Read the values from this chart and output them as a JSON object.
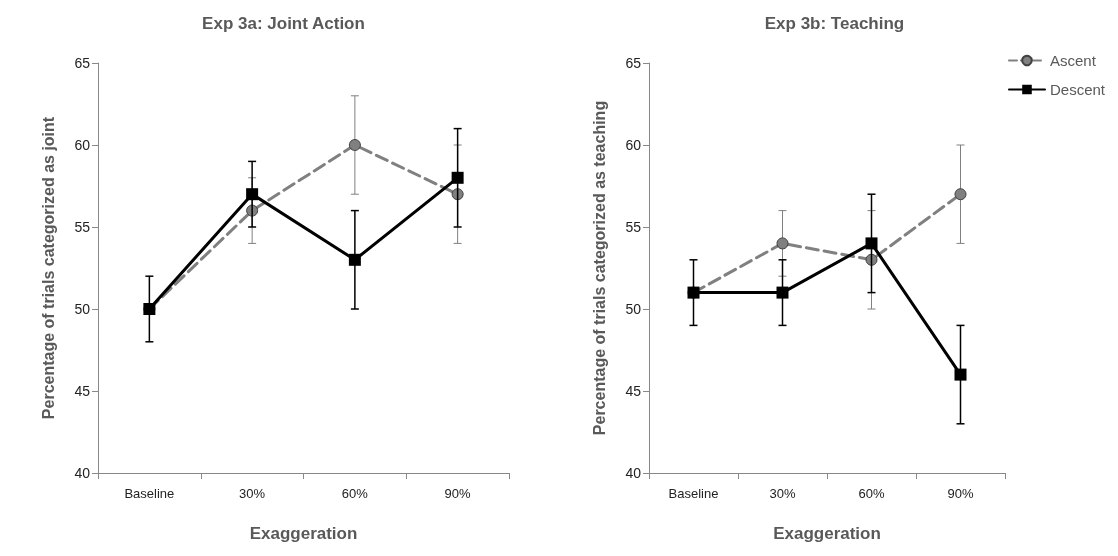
{
  "chart_data": [
    {
      "type": "line",
      "title": "Exp 3a: Joint Action",
      "xlabel": "Exaggeration",
      "ylabel": "Percentage of trials categorized as joint",
      "categories": [
        "Baseline",
        "30%",
        "60%",
        "90%"
      ],
      "ylim": [
        40,
        65
      ],
      "yticks": [
        40,
        45,
        50,
        55,
        60,
        65
      ],
      "grid": false,
      "legend": false,
      "series": [
        {
          "color": "#808080",
          "marker": "circle",
          "line_style": "dashed",
          "values": [
            50,
            56,
            60,
            57
          ],
          "errors": [
            null,
            2,
            3,
            3
          ]
        },
        {
          "color": "#000000",
          "marker": "square",
          "line_style": "solid",
          "values": [
            50,
            57,
            53,
            58
          ],
          "errors": [
            2,
            2,
            3,
            3
          ]
        }
      ]
    },
    {
      "type": "line",
      "title": "Exp 3b: Teaching",
      "xlabel": "Exaggeration",
      "ylabel": "Percentage of trials categorized as teaching",
      "categories": [
        "Baseline",
        "30%",
        "60%",
        "90%"
      ],
      "ylim": [
        40,
        65
      ],
      "yticks": [
        40,
        45,
        50,
        55,
        60,
        65
      ],
      "grid": false,
      "legend": "top right",
      "series": [
        {
          "name": "Ascent",
          "color": "#808080",
          "marker": "circle",
          "line_style": "dashed",
          "values": [
            51,
            54,
            53,
            57
          ],
          "errors": [
            null,
            2,
            3,
            3
          ]
        },
        {
          "name": "Descent",
          "color": "#000000",
          "marker": "square",
          "line_style": "solid",
          "values": [
            51,
            51,
            54,
            46
          ],
          "errors": [
            2,
            2,
            3,
            3
          ]
        }
      ]
    }
  ]
}
